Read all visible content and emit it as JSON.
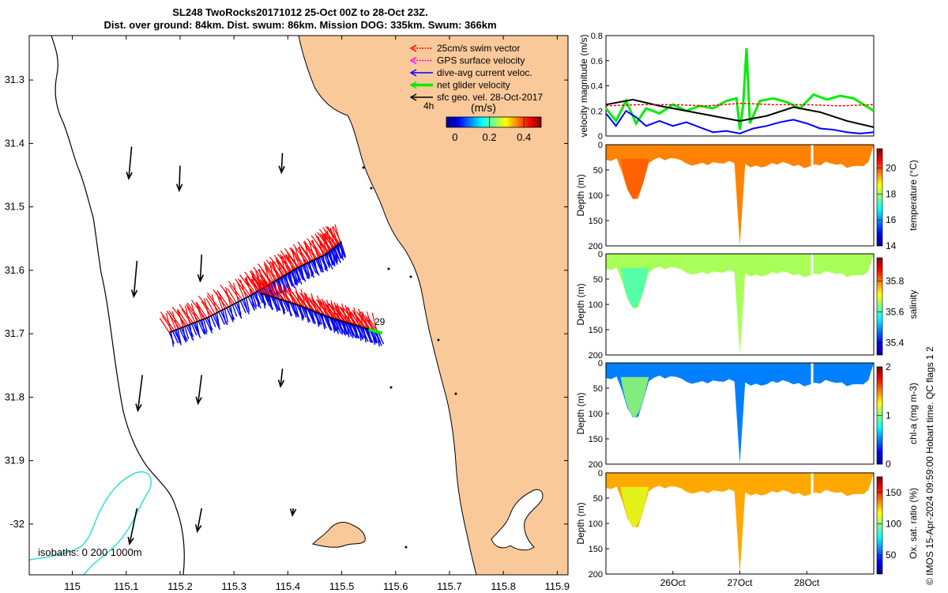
{
  "title": {
    "line1": "SL248 TwoRocks20171012 25-Oct 00Z to 28-Oct 23Z.",
    "line2": "Dist. over ground: 84km. Dist. swum: 86km. Mission DOG: 335km. Swum: 366km"
  },
  "stamp": "© IMOS 15-Apr-2024 09:59:00 Hobart time. QC flags 1 2",
  "colors": {
    "land": "#f9c99a",
    "swim_vector": "#ff0000",
    "gps_velocity": "#ff00ff",
    "dive_avg": "#0000ff",
    "net_glider": "#00ee00",
    "sfc_geo": "#000000",
    "isobath_200": "#000000",
    "isobath_1000": "#33dddd"
  },
  "chart_data": [
    {
      "type": "map",
      "x_ticks": [
        "115",
        "115.1",
        "115.2",
        "115.3",
        "115.4",
        "115.5",
        "115.6",
        "115.7",
        "115.8",
        "115.9"
      ],
      "x_values": [
        115,
        115.1,
        115.2,
        115.3,
        115.4,
        115.5,
        115.6,
        115.7,
        115.8,
        115.9
      ],
      "xlim": [
        114.92,
        115.92
      ],
      "y_ticks": [
        "31.3",
        "31.4",
        "31.5",
        "31.6",
        "31.7",
        "31.8",
        "31.9",
        "-32"
      ],
      "y_values": [
        31.3,
        31.4,
        31.5,
        31.6,
        31.7,
        31.8,
        31.9,
        32.0
      ],
      "ylim": [
        31.23,
        32.08
      ],
      "legend": [
        {
          "label": "25cm/s swim vector",
          "color_key": "swim_vector",
          "style": "dotted"
        },
        {
          "label": "GPS surface velocity",
          "color_key": "gps_velocity",
          "style": "dotted"
        },
        {
          "label": "dive-avg current veloc.",
          "color_key": "dive_avg",
          "style": "solid"
        },
        {
          "label": "net glider velocity",
          "color_key": "net_glider",
          "style": "thick"
        },
        {
          "label": "sfc geo. vel. 28-Oct-2017",
          "color_key": "sfc_geo",
          "style": "solid"
        }
      ],
      "legend_position": "top-right",
      "colorbar": {
        "label": "(m/s)",
        "prefix": "4h",
        "ticks": [
          "0",
          "0.2",
          "0.4"
        ],
        "tick_values": [
          0,
          0.2,
          0.4
        ],
        "range": [
          -0.05,
          0.5
        ]
      },
      "isobaths_label": "isobaths: 0   200  1000m",
      "annotation": "29",
      "glider_track_lonlat": [
        [
          115.18,
          31.698
        ],
        [
          115.25,
          31.675
        ],
        [
          115.33,
          31.64
        ],
        [
          115.38,
          31.615
        ],
        [
          115.42,
          31.595
        ],
        [
          115.47,
          31.575
        ],
        [
          115.5,
          31.555
        ]
      ],
      "glider_track2_lonlat": [
        [
          115.35,
          31.636
        ],
        [
          115.42,
          31.655
        ],
        [
          115.48,
          31.675
        ],
        [
          115.52,
          31.685
        ],
        [
          115.57,
          31.698
        ]
      ],
      "net_glider_lonlat": [
        [
          115.55,
          31.693
        ],
        [
          115.575,
          31.699
        ]
      ],
      "geo_vectors_lonlat": [
        [
          115.11,
          31.43,
          -0.25,
          0.9
        ],
        [
          115.2,
          31.46,
          -0.1,
          0.7
        ],
        [
          115.39,
          31.44,
          -0.15,
          0.55
        ],
        [
          115.12,
          31.61,
          -0.25,
          1.0
        ],
        [
          115.24,
          31.6,
          -0.15,
          0.75
        ],
        [
          115.13,
          31.79,
          -0.35,
          1.0
        ],
        [
          115.24,
          31.79,
          -0.35,
          0.8
        ],
        [
          115.39,
          31.78,
          -0.3,
          0.5
        ],
        [
          115.12,
          32.0,
          -0.55,
          1.0
        ],
        [
          115.24,
          32.0,
          -0.5,
          0.65
        ],
        [
          115.41,
          32.0,
          -0.3,
          0.2
        ]
      ]
    },
    {
      "type": "line",
      "ylabel": "velocity magnitude (m/s)",
      "ylim": [
        0,
        0.8
      ],
      "y_ticks": [
        "0",
        "0.2",
        "0.4",
        "0.6",
        "0.8"
      ],
      "tick_values": [
        0,
        0.2,
        0.4,
        0.6,
        0.8
      ],
      "xlim": [
        0,
        4
      ],
      "series": [
        {
          "name": "net glider velocity",
          "color_key": "net_glider",
          "x": [
            0,
            0.15,
            0.3,
            0.45,
            0.6,
            0.8,
            1,
            1.2,
            1.4,
            1.6,
            1.7,
            1.8,
            1.95,
            2.0,
            2.05,
            2.1,
            2.15,
            2.3,
            2.5,
            2.7,
            2.9,
            3.1,
            3.3,
            3.5,
            3.7,
            3.85,
            4
          ],
          "y": [
            0.22,
            0.12,
            0.28,
            0.1,
            0.22,
            0.18,
            0.25,
            0.2,
            0.24,
            0.22,
            0.25,
            0.28,
            0.3,
            0.05,
            0.25,
            0.7,
            0.1,
            0.28,
            0.3,
            0.27,
            0.22,
            0.33,
            0.29,
            0.32,
            0.3,
            0.25,
            0.2
          ]
        },
        {
          "name": "sfc geo. vel.",
          "color_key": "sfc_geo",
          "x": [
            0,
            0.4,
            0.8,
            1.2,
            1.6,
            2.0,
            2.4,
            2.8,
            3.2,
            3.6,
            4
          ],
          "y": [
            0.25,
            0.29,
            0.24,
            0.2,
            0.16,
            0.12,
            0.16,
            0.23,
            0.19,
            0.12,
            0.07
          ]
        },
        {
          "name": "dive-avg current veloc.",
          "color_key": "dive_avg",
          "x": [
            0,
            0.15,
            0.3,
            0.45,
            0.6,
            0.8,
            1,
            1.2,
            1.4,
            1.6,
            1.8,
            2.0,
            2.2,
            2.4,
            2.6,
            2.8,
            3.0,
            3.2,
            3.4,
            3.6,
            3.8,
            4
          ],
          "y": [
            0.18,
            0.08,
            0.2,
            0.15,
            0.08,
            0.12,
            0.08,
            0.11,
            0.07,
            0.03,
            0.04,
            0.02,
            0.06,
            0.08,
            0.11,
            0.13,
            0.1,
            0.06,
            0.05,
            0.03,
            0.02,
            0.03
          ]
        },
        {
          "name": "swim speed",
          "color_key": "swim_vector",
          "x": [
            0,
            0.5,
            1,
            1.5,
            2,
            2.5,
            3,
            3.5,
            4
          ],
          "y": [
            0.24,
            0.25,
            0.25,
            0.24,
            0.26,
            0.25,
            0.25,
            0.24,
            0.25
          ]
        }
      ]
    },
    {
      "type": "heatmap",
      "name": "temperature",
      "ylabel": "Depth (m)",
      "clabel": "temperature (°C)",
      "ylim": [
        0,
        200
      ],
      "y_ticks": [
        "0",
        "50",
        "100",
        "150",
        "200"
      ],
      "tick_values": [
        0,
        50,
        100,
        150,
        200
      ],
      "crange": [
        14,
        21.5
      ],
      "c_ticks": [
        "14",
        "16",
        "18",
        "20"
      ],
      "c_tick_values": [
        14,
        16,
        18,
        20
      ],
      "surface_value": 19.6,
      "bulge_value": 19.9
    },
    {
      "type": "heatmap",
      "name": "salinity",
      "ylabel": "Depth (m)",
      "clabel": "salinity",
      "ylim": [
        0,
        200
      ],
      "y_ticks": [
        "0",
        "50",
        "100",
        "150",
        "200"
      ],
      "tick_values": [
        0,
        50,
        100,
        150,
        200
      ],
      "crange": [
        35.32,
        35.95
      ],
      "c_ticks": [
        "35.4",
        "35.6",
        "35.8"
      ],
      "c_tick_values": [
        35.4,
        35.6,
        35.8
      ],
      "surface_value": 35.66,
      "bulge_value": 35.6
    },
    {
      "type": "heatmap",
      "name": "chlorophyll",
      "ylabel": "Depth (m)",
      "clabel": "chl-a (mg m-3)",
      "ylim": [
        0,
        200
      ],
      "y_ticks": [
        "0",
        "50",
        "100",
        "150",
        "200"
      ],
      "tick_values": [
        0,
        50,
        100,
        150,
        200
      ],
      "crange": [
        0,
        2
      ],
      "c_ticks": [
        "0",
        "1",
        "2"
      ],
      "c_tick_values": [
        0,
        1,
        2
      ],
      "surface_value": 0.5,
      "bulge_value": 1.05
    },
    {
      "type": "heatmap",
      "name": "oxygen",
      "ylabel": "Depth (m)",
      "clabel": "Ox. sat. ratio (%)",
      "ylim": [
        0,
        200
      ],
      "y_ticks": [
        "0",
        "50",
        "100",
        "150",
        "200"
      ],
      "tick_values": [
        0,
        50,
        100,
        150,
        200
      ],
      "crange": [
        20,
        175
      ],
      "c_ticks": [
        "50",
        "100",
        "150"
      ],
      "c_tick_values": [
        50,
        100,
        150
      ],
      "surface_value": 130,
      "bulge_value": 112,
      "x_ticks": [
        "26Oct",
        "27Oct",
        "28Oct"
      ],
      "x_values": [
        1,
        2,
        3
      ],
      "xlim": [
        0,
        4
      ]
    }
  ]
}
